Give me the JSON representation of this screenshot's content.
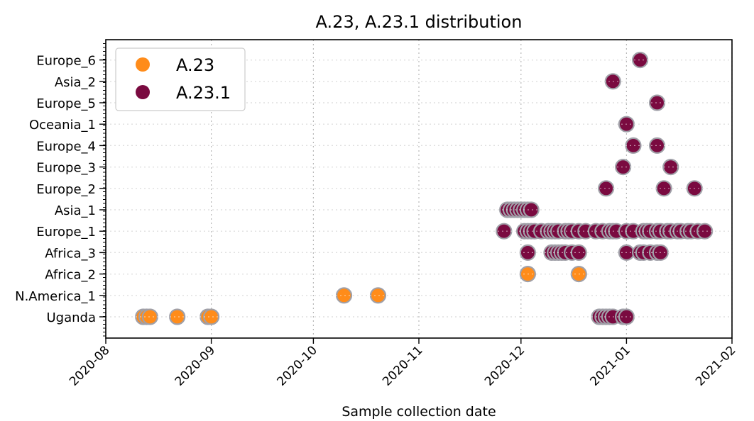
{
  "chart_data": {
    "type": "scatter",
    "title": "A.23, A.23.1 distribution",
    "xlabel": "Sample collection date",
    "ylabel": "",
    "x_axis": {
      "type": "date",
      "min": "2020-08-01",
      "max": "2021-02-01",
      "ticks": [
        "2020-08",
        "2020-09",
        "2020-10",
        "2020-11",
        "2020-12",
        "2021-01",
        "2021-02"
      ]
    },
    "categories": [
      "Uganda",
      "N.America_1",
      "Africa_2",
      "Africa_3",
      "Europe_1",
      "Asia_1",
      "Europe_2",
      "Europe_3",
      "Europe_4",
      "Oceania_1",
      "Europe_5",
      "Asia_2",
      "Europe_6"
    ],
    "grid": true,
    "legend_position": "top-left",
    "series": [
      {
        "name": "A.23",
        "color": "#ff8c1a",
        "points": [
          {
            "category": "Uganda",
            "dates": [
              "2020-08-12",
              "2020-08-13",
              "2020-08-14",
              "2020-08-22",
              "2020-08-31",
              "2020-09-01"
            ]
          },
          {
            "category": "N.America_1",
            "dates": [
              "2020-10-10",
              "2020-10-20"
            ]
          },
          {
            "category": "Africa_2",
            "dates": [
              "2020-12-03",
              "2020-12-18"
            ]
          }
        ]
      },
      {
        "name": "A.23.1",
        "color": "#7a0a40",
        "points": [
          {
            "category": "Uganda",
            "dates": [
              "2020-12-24",
              "2020-12-25",
              "2020-12-26",
              "2020-12-27",
              "2020-12-28",
              "2020-12-31",
              "2021-01-01"
            ]
          },
          {
            "category": "Africa_3",
            "dates": [
              "2020-12-03",
              "2020-12-10",
              "2020-12-11",
              "2020-12-12",
              "2020-12-13",
              "2020-12-14",
              "2020-12-16",
              "2020-12-18",
              "2021-01-01",
              "2021-01-05",
              "2021-01-06",
              "2021-01-08",
              "2021-01-10",
              "2021-01-11"
            ]
          },
          {
            "category": "Europe_1",
            "dates": [
              "2020-11-26",
              "2020-12-02",
              "2020-12-03",
              "2020-12-04",
              "2020-12-05",
              "2020-12-07",
              "2020-12-09",
              "2020-12-10",
              "2020-12-11",
              "2020-12-12",
              "2020-12-14",
              "2020-12-15",
              "2020-12-16",
              "2020-12-18",
              "2020-12-20",
              "2020-12-23",
              "2020-12-25",
              "2020-12-27",
              "2020-12-28",
              "2020-12-29",
              "2021-01-01",
              "2021-01-03",
              "2021-01-06",
              "2021-01-07",
              "2021-01-08",
              "2021-01-10",
              "2021-01-11",
              "2021-01-13",
              "2021-01-14",
              "2021-01-16",
              "2021-01-17",
              "2021-01-19",
              "2021-01-20",
              "2021-01-22",
              "2021-01-24"
            ]
          },
          {
            "category": "Asia_1",
            "dates": [
              "2020-11-27",
              "2020-11-28",
              "2020-11-29",
              "2020-11-30",
              "2020-12-01",
              "2020-12-02",
              "2020-12-03",
              "2020-12-04"
            ]
          },
          {
            "category": "Europe_2",
            "dates": [
              "2020-12-26",
              "2021-01-12",
              "2021-01-21"
            ]
          },
          {
            "category": "Europe_3",
            "dates": [
              "2020-12-31",
              "2021-01-14"
            ]
          },
          {
            "category": "Europe_4",
            "dates": [
              "2021-01-03",
              "2021-01-10"
            ]
          },
          {
            "category": "Oceania_1",
            "dates": [
              "2021-01-01"
            ]
          },
          {
            "category": "Europe_5",
            "dates": [
              "2021-01-10"
            ]
          },
          {
            "category": "Asia_2",
            "dates": [
              "2020-12-28"
            ]
          },
          {
            "category": "Europe_6",
            "dates": [
              "2021-01-05"
            ]
          }
        ]
      }
    ]
  }
}
